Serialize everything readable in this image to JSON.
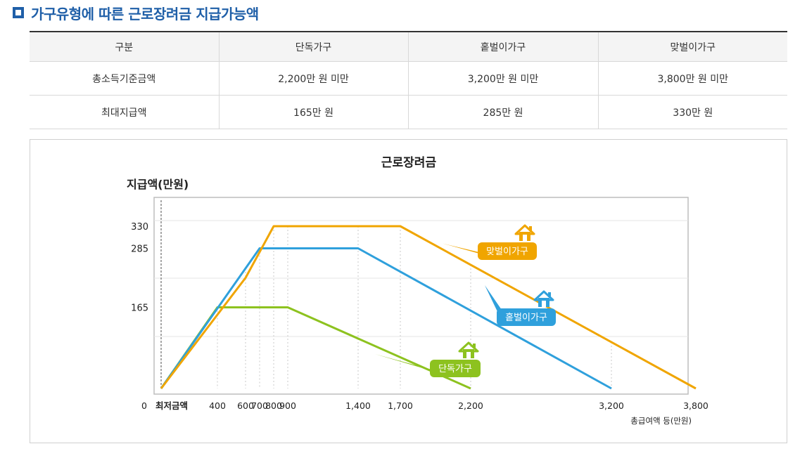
{
  "section": {
    "title": "가구유형에 따른 근로장려금 지급가능액"
  },
  "table": {
    "headers": [
      "구분",
      "단독가구",
      "홑벌이가구",
      "맞벌이가구"
    ],
    "rows": [
      [
        "총소득기준금액",
        "2,200만 원 미만",
        "3,200만 원 미만",
        "3,800만 원 미만"
      ],
      [
        "최대지급액",
        "165만 원",
        "285만 원",
        "330만 원"
      ]
    ]
  },
  "chart_data": {
    "type": "line",
    "title": "근로장려금",
    "ylabel": "지급액(만원)",
    "xlabel": "총급여액 등(만원)",
    "x_ticks": [
      "0",
      "최저금액",
      "400",
      "600",
      "700",
      "800",
      "900",
      "1,400",
      "1,700",
      "2,200",
      "3,200",
      "3,800"
    ],
    "y_ticks": [
      "330",
      "285",
      "165"
    ],
    "grid": true,
    "series": [
      {
        "name": "단독가구",
        "color": "#8dc21f",
        "icon": "house-icon",
        "points": [
          [
            0,
            0
          ],
          [
            400,
            165
          ],
          [
            900,
            165
          ],
          [
            2200,
            0
          ]
        ]
      },
      {
        "name": "홑벌이가구",
        "color": "#2fa0dc",
        "icon": "house-icon",
        "points": [
          [
            0,
            0
          ],
          [
            700,
            285
          ],
          [
            1400,
            285
          ],
          [
            3200,
            0
          ]
        ]
      },
      {
        "name": "맞벌이가구",
        "color": "#f0a500",
        "icon": "house-icon",
        "points": [
          [
            0,
            0
          ],
          [
            600,
            225
          ],
          [
            800,
            330
          ],
          [
            1700,
            330
          ],
          [
            3800,
            0
          ]
        ]
      }
    ]
  }
}
